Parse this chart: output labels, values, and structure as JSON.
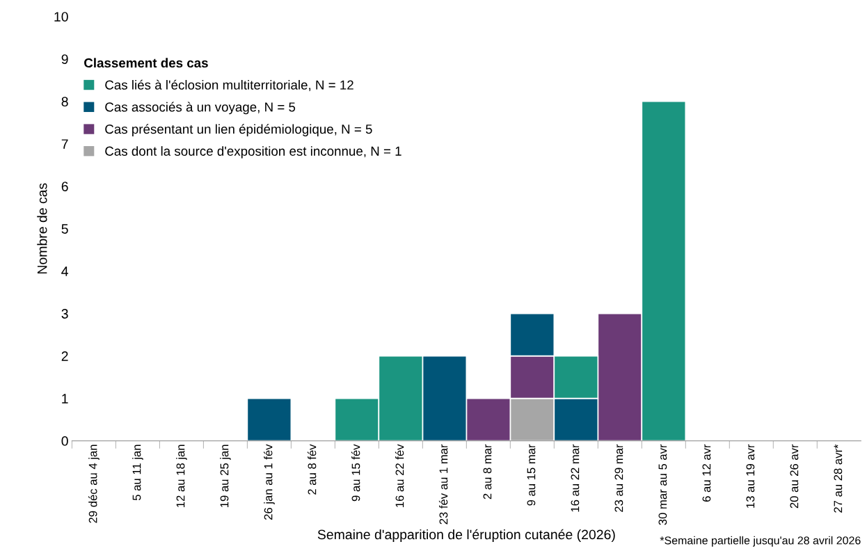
{
  "chart_data": {
    "type": "bar",
    "stacked": true,
    "xlabel": "Semaine d'apparition de l'éruption cutanée (2026)",
    "ylabel": "Nombre de cas",
    "legend_title": "Classement des cas",
    "legend": "top left",
    "grid": false,
    "categories": [
      "29 déc au 4 jan",
      "5 au 11 jan",
      "12 au 18 jan",
      "19 au 25 jan",
      "26 jan au 1 fév",
      "2 au 8 fév",
      "9 au 15 fév",
      "16 au 22 fév",
      "23 fév au 1 mar",
      "2 au 8 mar",
      "9 au 15 mar",
      "16 au 22 mar",
      "23 au 29 mar",
      "30 mar au 5 avr",
      "6 au 12 avr",
      "13 au 19 avr",
      "20 au 26 avr",
      "27 au 28 avr*"
    ],
    "ylim": [
      0,
      10
    ],
    "yticks": [
      0,
      1,
      2,
      3,
      4,
      5,
      6,
      7,
      8,
      9,
      10
    ],
    "series": [
      {
        "name": "Cas dont la source d'exposition est inconnue, N = 1",
        "color": "#a6a6a6",
        "values": [
          0,
          0,
          0,
          0,
          0,
          0,
          0,
          0,
          0,
          0,
          1,
          0,
          0,
          0,
          0,
          0,
          0,
          0
        ]
      },
      {
        "name": "Cas présentant un lien épidémiologique, N = 5",
        "color": "#6b3a76",
        "values": [
          0,
          0,
          0,
          0,
          0,
          0,
          0,
          0,
          0,
          1,
          1,
          0,
          3,
          0,
          0,
          0,
          0,
          0
        ]
      },
      {
        "name": "Cas associés à un voyage, N = 5",
        "color": "#005578",
        "values": [
          0,
          0,
          0,
          0,
          1,
          0,
          0,
          0,
          2,
          0,
          1,
          1,
          0,
          0,
          0,
          0,
          0,
          0
        ]
      },
      {
        "name": "Cas liés à l'éclosion multiterritoriale, N = 12",
        "color": "#1b9580",
        "values": [
          0,
          0,
          0,
          0,
          0,
          0,
          1,
          2,
          0,
          0,
          0,
          1,
          0,
          8,
          0,
          0,
          0,
          0
        ]
      }
    ],
    "annotations": [
      "*Semaine partielle jusqu'au 28 avril 2026"
    ]
  }
}
